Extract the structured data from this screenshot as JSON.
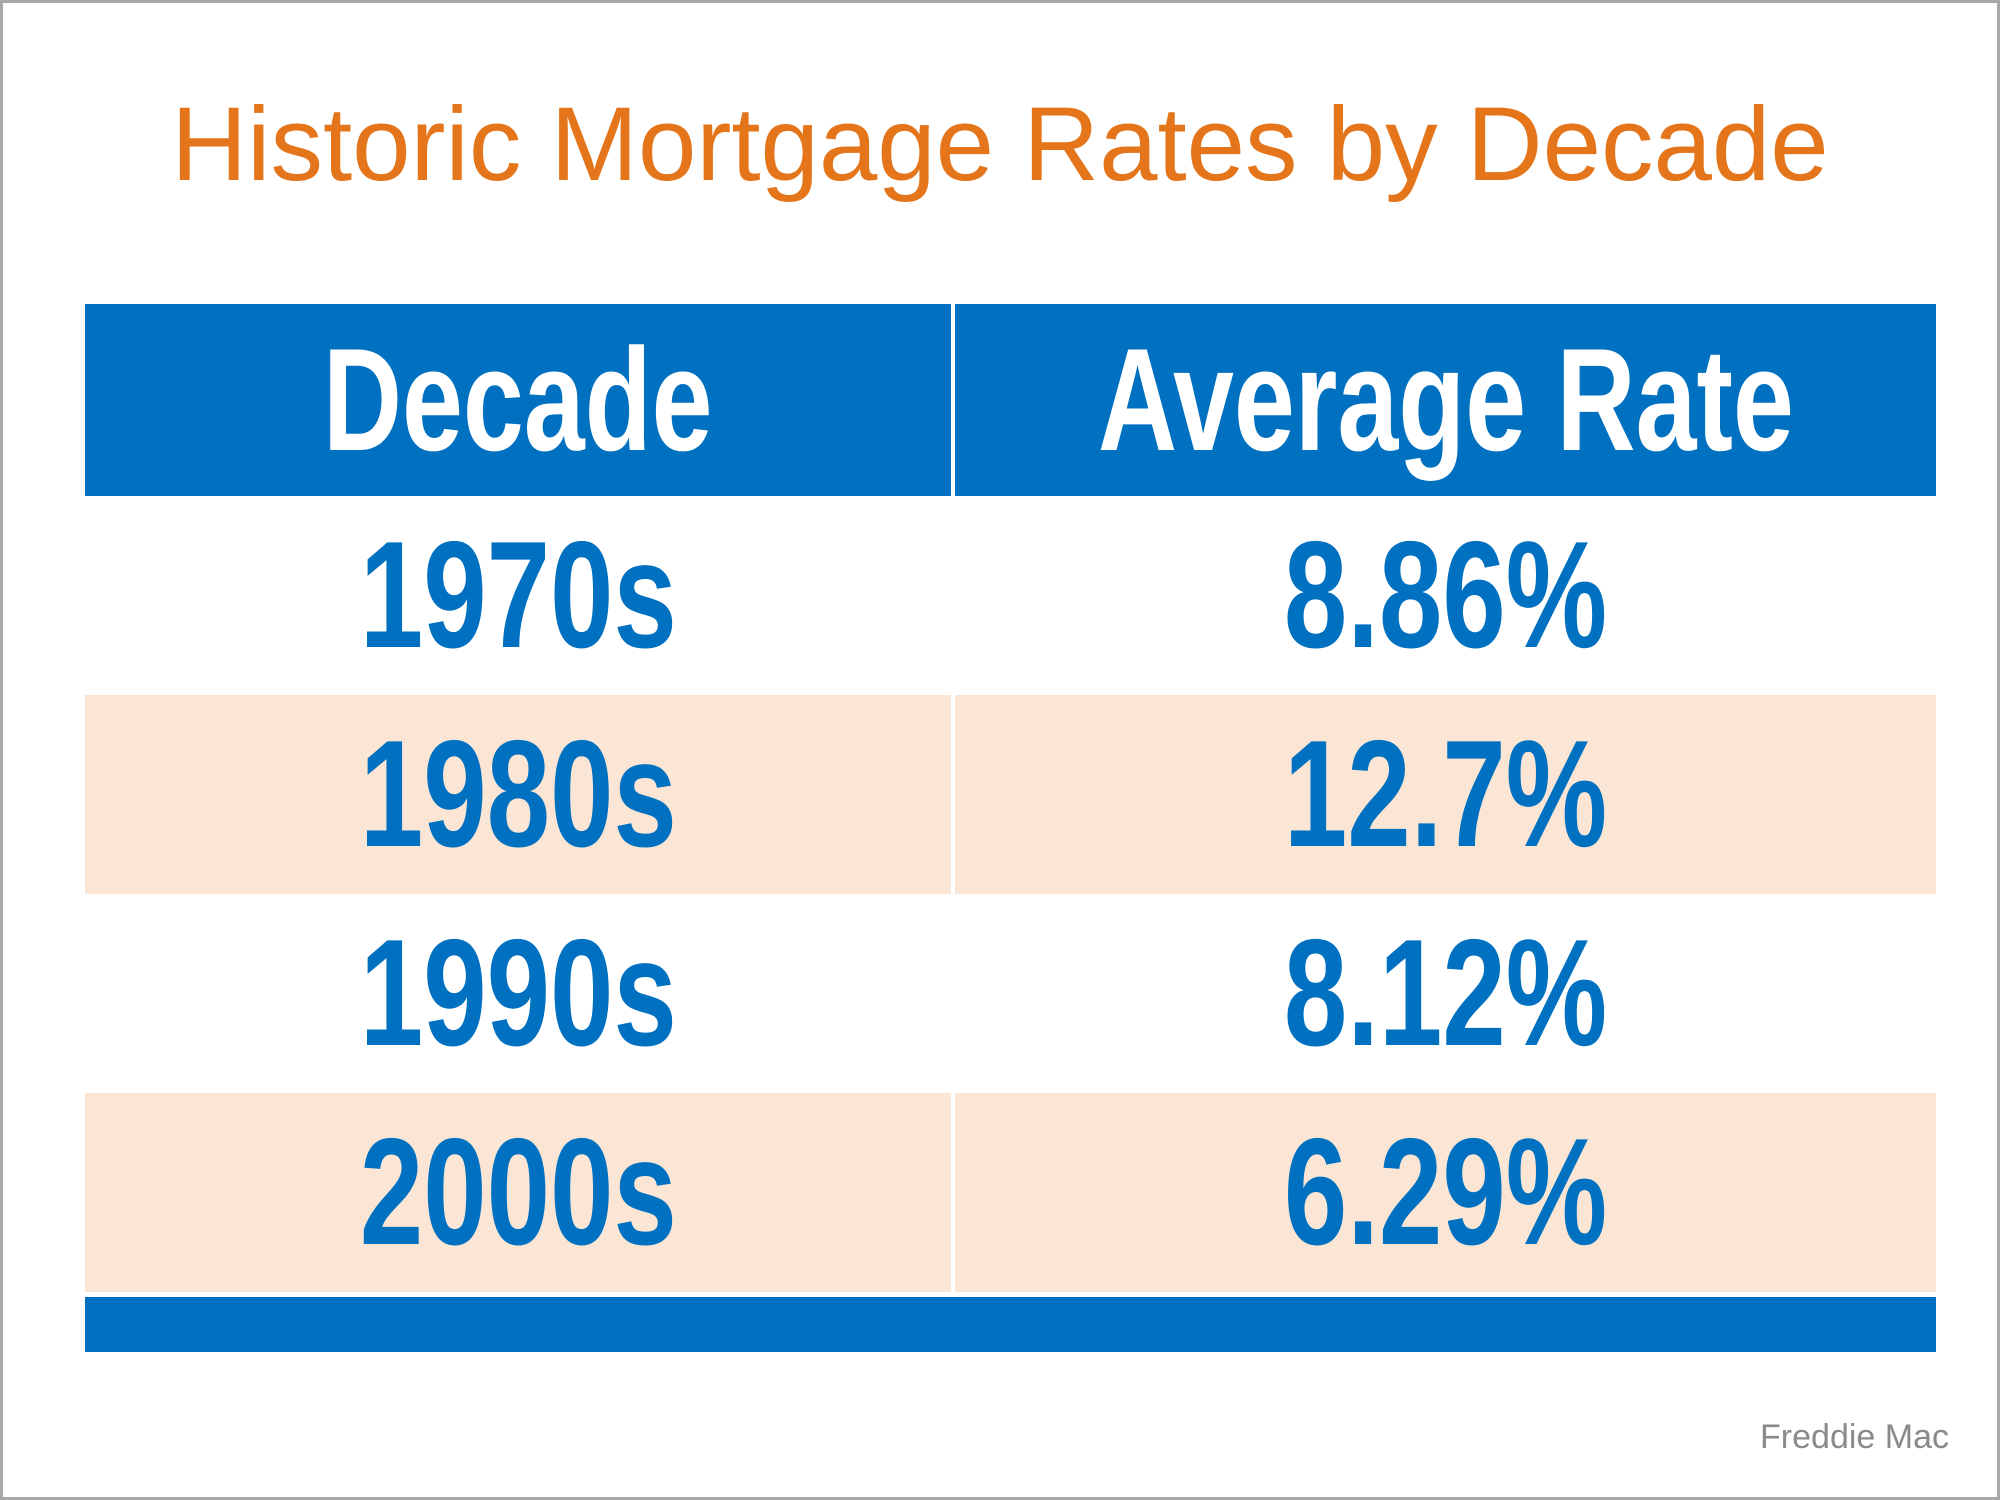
{
  "page": {
    "title": "Historic Mortgage Rates by Decade",
    "source_attribution": "Freddie Mac"
  },
  "table": {
    "columns": [
      "Decade",
      "Average Rate"
    ],
    "rows": [
      {
        "decade": "1970s",
        "rate": "8.86%"
      },
      {
        "decade": "1980s",
        "rate": "12.7%"
      },
      {
        "decade": "1990s",
        "rate": "8.12%"
      },
      {
        "decade": "2000s",
        "rate": "6.29%"
      }
    ]
  },
  "colors": {
    "title_orange": "#e4751b",
    "table_blue": "#0070c0",
    "row_alt_peach": "#fbe6d5",
    "header_text_white": "#ffffff",
    "source_gray": "#8a8a8a",
    "frame_border_gray": "#a8a8a8"
  },
  "chart_data": {
    "type": "table",
    "title": "Historic Mortgage Rates by Decade",
    "columns": [
      "Decade",
      "Average Rate"
    ],
    "categories": [
      "1970s",
      "1980s",
      "1990s",
      "2000s"
    ],
    "values": [
      8.86,
      12.7,
      8.12,
      6.29
    ],
    "unit": "percent",
    "source": "Freddie Mac"
  }
}
